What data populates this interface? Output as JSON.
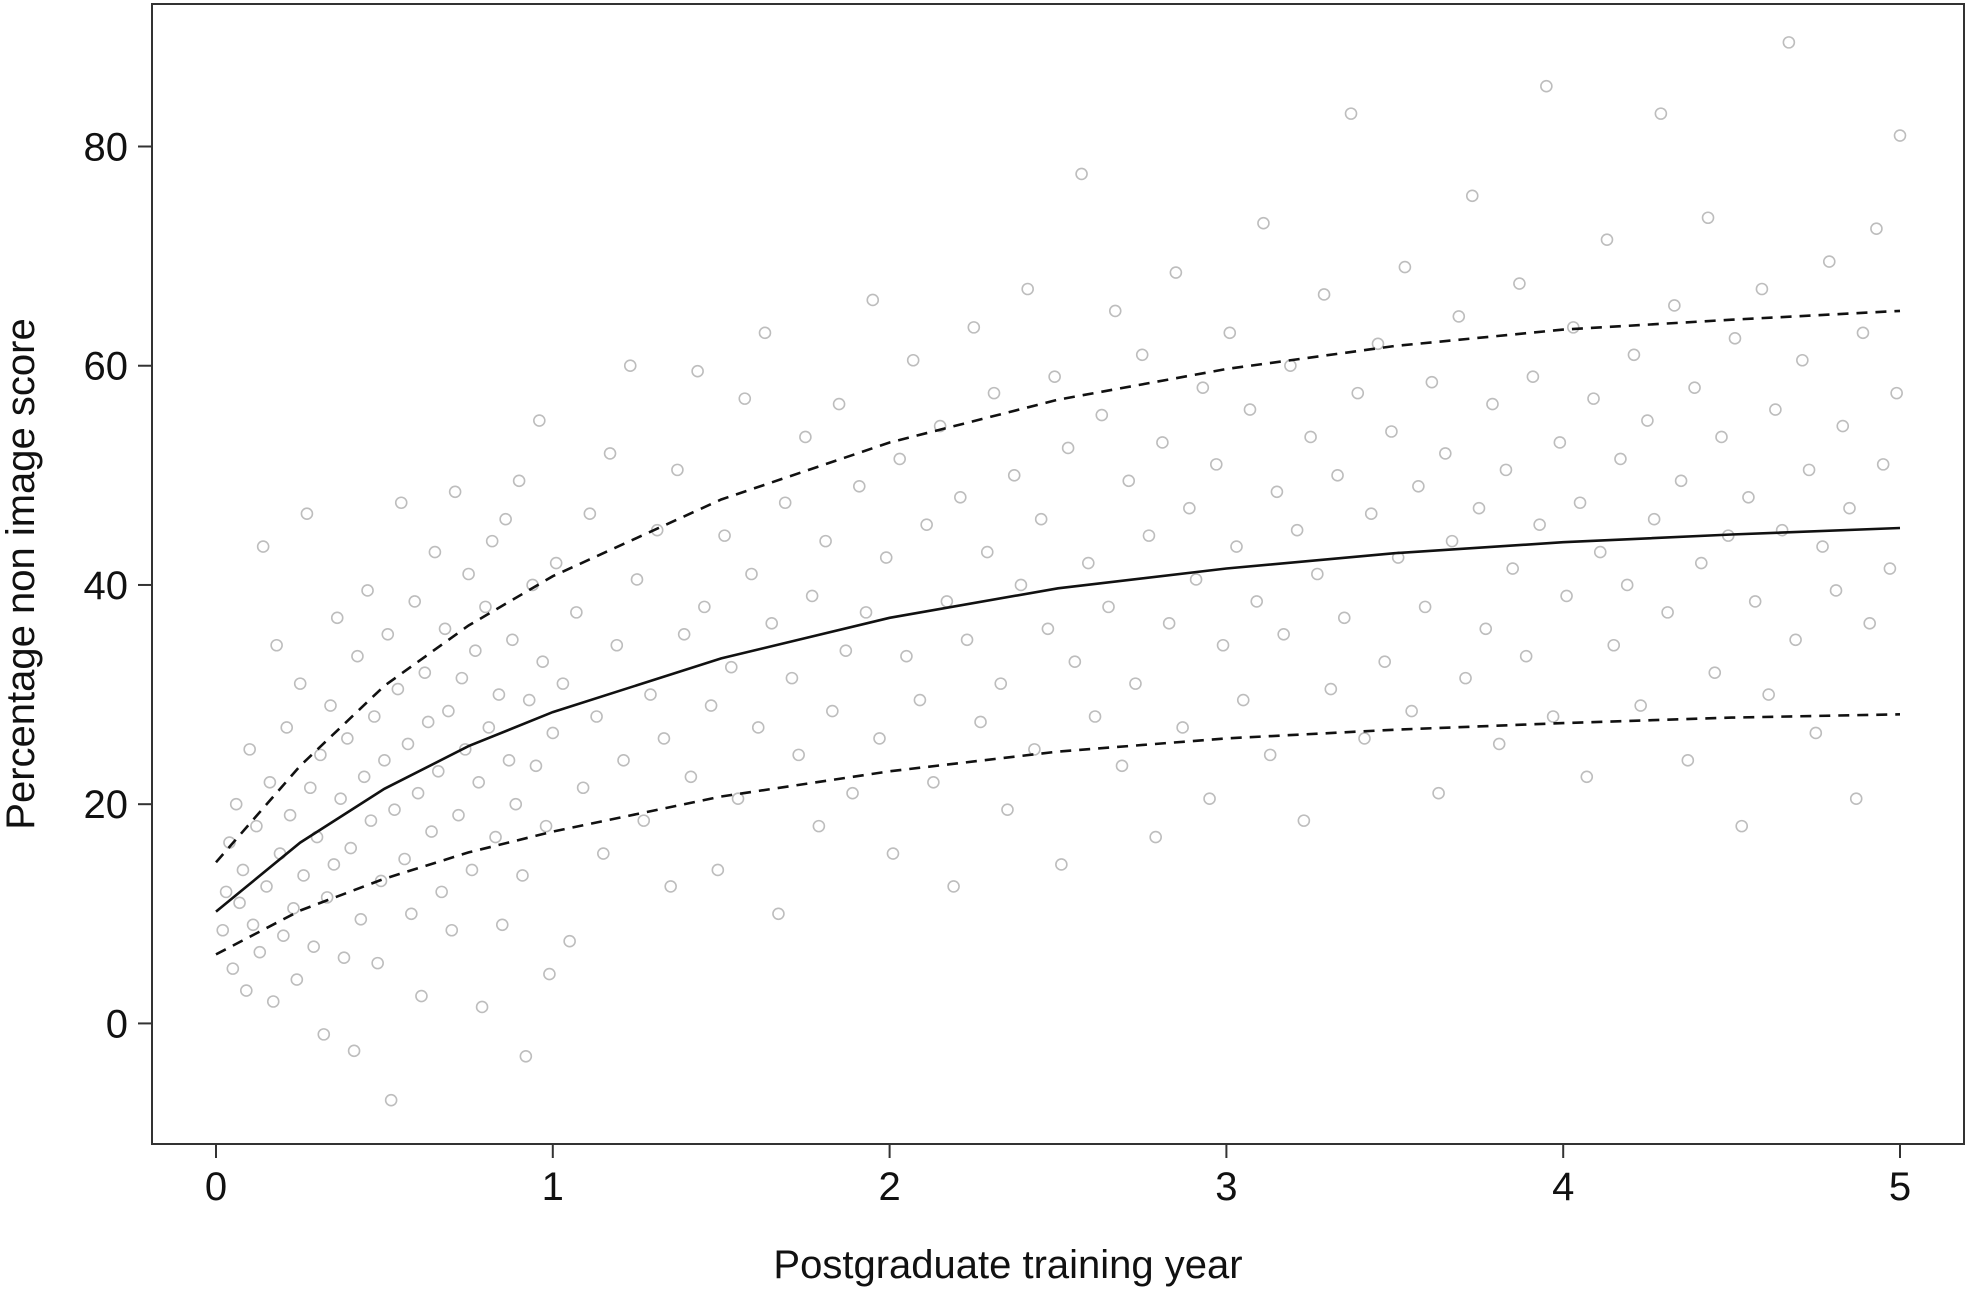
{
  "chart_data": {
    "type": "scatter",
    "title": "",
    "xlabel": "Postgraduate training year",
    "ylabel": "Percentage non image score",
    "xlim": [
      -0.19,
      5.19
    ],
    "ylim": [
      -11,
      93
    ],
    "x_ticks": [
      0,
      1,
      2,
      3,
      4,
      5
    ],
    "y_ticks": [
      0,
      20,
      40,
      60,
      80
    ],
    "grid": false,
    "legend": "none",
    "colors": {
      "points": "#bdbdbd",
      "lines": "#111111",
      "frame": "#333333"
    },
    "fitted_lines": [
      {
        "style": "solid",
        "x": [
          0,
          0.25,
          0.5,
          0.75,
          1,
          1.5,
          2,
          2.5,
          3,
          3.5,
          4,
          4.5,
          5
        ],
        "y": [
          10.2,
          16.5,
          21.4,
          25.3,
          28.4,
          33.3,
          37.0,
          39.7,
          41.5,
          42.9,
          43.9,
          44.6,
          45.2
        ]
      },
      {
        "style": "dashed",
        "x": [
          0,
          0.25,
          0.5,
          0.75,
          1,
          1.5,
          2,
          2.5,
          3,
          3.5,
          4,
          4.5,
          5
        ],
        "y": [
          14.7,
          23.5,
          30.8,
          36.3,
          40.8,
          47.8,
          53.0,
          56.9,
          59.7,
          61.8,
          63.3,
          64.2,
          65.0
        ]
      },
      {
        "style": "dashed",
        "x": [
          0,
          0.25,
          0.5,
          0.75,
          1,
          1.5,
          2,
          2.5,
          3,
          3.5,
          4,
          4.5,
          5
        ],
        "y": [
          6.3,
          10.3,
          13.2,
          15.6,
          17.5,
          20.7,
          23.0,
          24.8,
          26.0,
          26.8,
          27.4,
          27.9,
          28.2
        ]
      }
    ],
    "scatter_points": [
      [
        0.02,
        8.5
      ],
      [
        0.03,
        12.0
      ],
      [
        0.04,
        16.5
      ],
      [
        0.05,
        5.0
      ],
      [
        0.06,
        20.0
      ],
      [
        0.07,
        11.0
      ],
      [
        0.08,
        14.0
      ],
      [
        0.09,
        3.0
      ],
      [
        0.1,
        25.0
      ],
      [
        0.11,
        9.0
      ],
      [
        0.12,
        18.0
      ],
      [
        0.13,
        6.5
      ],
      [
        0.14,
        43.5
      ],
      [
        0.15,
        12.5
      ],
      [
        0.16,
        22.0
      ],
      [
        0.17,
        2.0
      ],
      [
        0.18,
        34.5
      ],
      [
        0.19,
        15.5
      ],
      [
        0.2,
        8.0
      ],
      [
        0.21,
        27.0
      ],
      [
        0.22,
        19.0
      ],
      [
        0.23,
        10.5
      ],
      [
        0.24,
        4.0
      ],
      [
        0.25,
        31.0
      ],
      [
        0.26,
        13.5
      ],
      [
        0.27,
        46.5
      ],
      [
        0.28,
        21.5
      ],
      [
        0.29,
        7.0
      ],
      [
        0.3,
        17.0
      ],
      [
        0.31,
        24.5
      ],
      [
        0.32,
        -1.0
      ],
      [
        0.33,
        11.5
      ],
      [
        0.34,
        29.0
      ],
      [
        0.35,
        14.5
      ],
      [
        0.36,
        37.0
      ],
      [
        0.37,
        20.5
      ],
      [
        0.38,
        6.0
      ],
      [
        0.39,
        26.0
      ],
      [
        0.4,
        16.0
      ],
      [
        0.41,
        -2.5
      ],
      [
        0.42,
        33.5
      ],
      [
        0.43,
        9.5
      ],
      [
        0.44,
        22.5
      ],
      [
        0.45,
        39.5
      ],
      [
        0.46,
        18.5
      ],
      [
        0.47,
        28.0
      ],
      [
        0.48,
        5.5
      ],
      [
        0.49,
        13.0
      ],
      [
        0.5,
        24.0
      ],
      [
        0.51,
        35.5
      ],
      [
        0.52,
        -7.0
      ],
      [
        0.53,
        19.5
      ],
      [
        0.54,
        30.5
      ],
      [
        0.55,
        47.5
      ],
      [
        0.56,
        15.0
      ],
      [
        0.57,
        25.5
      ],
      [
        0.58,
        10.0
      ],
      [
        0.59,
        38.5
      ],
      [
        0.6,
        21.0
      ],
      [
        0.61,
        2.5
      ],
      [
        0.62,
        32.0
      ],
      [
        0.63,
        27.5
      ],
      [
        0.64,
        17.5
      ],
      [
        0.65,
        43.0
      ],
      [
        0.66,
        23.0
      ],
      [
        0.67,
        12.0
      ],
      [
        0.68,
        36.0
      ],
      [
        0.69,
        28.5
      ],
      [
        0.7,
        8.5
      ],
      [
        0.71,
        48.5
      ],
      [
        0.72,
        19.0
      ],
      [
        0.73,
        31.5
      ],
      [
        0.74,
        25.0
      ],
      [
        0.75,
        41.0
      ],
      [
        0.76,
        14.0
      ],
      [
        0.77,
        34.0
      ],
      [
        0.78,
        22.0
      ],
      [
        0.79,
        1.5
      ],
      [
        0.8,
        38.0
      ],
      [
        0.81,
        27.0
      ],
      [
        0.82,
        44.0
      ],
      [
        0.83,
        17.0
      ],
      [
        0.84,
        30.0
      ],
      [
        0.85,
        9.0
      ],
      [
        0.86,
        46.0
      ],
      [
        0.87,
        24.0
      ],
      [
        0.88,
        35.0
      ],
      [
        0.89,
        20.0
      ],
      [
        0.9,
        49.5
      ],
      [
        0.91,
        13.5
      ],
      [
        0.92,
        -3.0
      ],
      [
        0.93,
        29.5
      ],
      [
        0.94,
        40.0
      ],
      [
        0.95,
        23.5
      ],
      [
        0.96,
        55.0
      ],
      [
        0.97,
        33.0
      ],
      [
        0.98,
        18.0
      ],
      [
        0.99,
        4.5
      ],
      [
        1.0,
        26.5
      ],
      [
        1.01,
        42.0
      ],
      [
        1.03,
        31.0
      ],
      [
        1.05,
        7.5
      ],
      [
        1.07,
        37.5
      ],
      [
        1.09,
        21.5
      ],
      [
        1.11,
        46.5
      ],
      [
        1.13,
        28.0
      ],
      [
        1.15,
        15.5
      ],
      [
        1.17,
        52.0
      ],
      [
        1.19,
        34.5
      ],
      [
        1.21,
        24.0
      ],
      [
        1.23,
        60.0
      ],
      [
        1.25,
        40.5
      ],
      [
        1.27,
        18.5
      ],
      [
        1.29,
        30.0
      ],
      [
        1.31,
        45.0
      ],
      [
        1.33,
        26.0
      ],
      [
        1.35,
        12.5
      ],
      [
        1.37,
        50.5
      ],
      [
        1.39,
        35.5
      ],
      [
        1.41,
        22.5
      ],
      [
        1.43,
        59.5
      ],
      [
        1.45,
        38.0
      ],
      [
        1.47,
        29.0
      ],
      [
        1.49,
        14.0
      ],
      [
        1.51,
        44.5
      ],
      [
        1.53,
        32.5
      ],
      [
        1.55,
        20.5
      ],
      [
        1.57,
        57.0
      ],
      [
        1.59,
        41.0
      ],
      [
        1.61,
        27.0
      ],
      [
        1.63,
        63.0
      ],
      [
        1.65,
        36.5
      ],
      [
        1.67,
        10.0
      ],
      [
        1.69,
        47.5
      ],
      [
        1.71,
        31.5
      ],
      [
        1.73,
        24.5
      ],
      [
        1.75,
        53.5
      ],
      [
        1.77,
        39.0
      ],
      [
        1.79,
        18.0
      ],
      [
        1.81,
        44.0
      ],
      [
        1.83,
        28.5
      ],
      [
        1.85,
        56.5
      ],
      [
        1.87,
        34.0
      ],
      [
        1.89,
        21.0
      ],
      [
        1.91,
        49.0
      ],
      [
        1.93,
        37.5
      ],
      [
        1.95,
        66.0
      ],
      [
        1.97,
        26.0
      ],
      [
        1.99,
        42.5
      ],
      [
        2.01,
        15.5
      ],
      [
        2.03,
        51.5
      ],
      [
        2.05,
        33.5
      ],
      [
        2.07,
        60.5
      ],
      [
        2.09,
        29.5
      ],
      [
        2.11,
        45.5
      ],
      [
        2.13,
        22.0
      ],
      [
        2.15,
        54.5
      ],
      [
        2.17,
        38.5
      ],
      [
        2.19,
        12.5
      ],
      [
        2.21,
        48.0
      ],
      [
        2.23,
        35.0
      ],
      [
        2.25,
        63.5
      ],
      [
        2.27,
        27.5
      ],
      [
        2.29,
        43.0
      ],
      [
        2.31,
        57.5
      ],
      [
        2.33,
        31.0
      ],
      [
        2.35,
        19.5
      ],
      [
        2.37,
        50.0
      ],
      [
        2.39,
        40.0
      ],
      [
        2.41,
        67.0
      ],
      [
        2.43,
        25.0
      ],
      [
        2.45,
        46.0
      ],
      [
        2.47,
        36.0
      ],
      [
        2.49,
        59.0
      ],
      [
        2.51,
        14.5
      ],
      [
        2.53,
        52.5
      ],
      [
        2.55,
        33.0
      ],
      [
        2.57,
        77.5
      ],
      [
        2.59,
        42.0
      ],
      [
        2.61,
        28.0
      ],
      [
        2.63,
        55.5
      ],
      [
        2.65,
        38.0
      ],
      [
        2.67,
        65.0
      ],
      [
        2.69,
        23.5
      ],
      [
        2.71,
        49.5
      ],
      [
        2.73,
        31.0
      ],
      [
        2.75,
        61.0
      ],
      [
        2.77,
        44.5
      ],
      [
        2.79,
        17.0
      ],
      [
        2.81,
        53.0
      ],
      [
        2.83,
        36.5
      ],
      [
        2.85,
        68.5
      ],
      [
        2.87,
        27.0
      ],
      [
        2.89,
        47.0
      ],
      [
        2.91,
        40.5
      ],
      [
        2.93,
        58.0
      ],
      [
        2.95,
        20.5
      ],
      [
        2.97,
        51.0
      ],
      [
        2.99,
        34.5
      ],
      [
        3.01,
        63.0
      ],
      [
        3.03,
        43.5
      ],
      [
        3.05,
        29.5
      ],
      [
        3.07,
        56.0
      ],
      [
        3.09,
        38.5
      ],
      [
        3.11,
        73.0
      ],
      [
        3.13,
        24.5
      ],
      [
        3.15,
        48.5
      ],
      [
        3.17,
        35.5
      ],
      [
        3.19,
        60.0
      ],
      [
        3.21,
        45.0
      ],
      [
        3.23,
        18.5
      ],
      [
        3.25,
        53.5
      ],
      [
        3.27,
        41.0
      ],
      [
        3.29,
        66.5
      ],
      [
        3.31,
        30.5
      ],
      [
        3.33,
        50.0
      ],
      [
        3.35,
        37.0
      ],
      [
        3.37,
        83.0
      ],
      [
        3.39,
        57.5
      ],
      [
        3.41,
        26.0
      ],
      [
        3.43,
        46.5
      ],
      [
        3.45,
        62.0
      ],
      [
        3.47,
        33.0
      ],
      [
        3.49,
        54.0
      ],
      [
        3.51,
        42.5
      ],
      [
        3.53,
        69.0
      ],
      [
        3.55,
        28.5
      ],
      [
        3.57,
        49.0
      ],
      [
        3.59,
        38.0
      ],
      [
        3.61,
        58.5
      ],
      [
        3.63,
        21.0
      ],
      [
        3.65,
        52.0
      ],
      [
        3.67,
        44.0
      ],
      [
        3.69,
        64.5
      ],
      [
        3.71,
        31.5
      ],
      [
        3.73,
        75.5
      ],
      [
        3.75,
        47.0
      ],
      [
        3.77,
        36.0
      ],
      [
        3.79,
        56.5
      ],
      [
        3.81,
        25.5
      ],
      [
        3.83,
        50.5
      ],
      [
        3.85,
        41.5
      ],
      [
        3.87,
        67.5
      ],
      [
        3.89,
        33.5
      ],
      [
        3.91,
        59.0
      ],
      [
        3.93,
        45.5
      ],
      [
        3.95,
        85.5
      ],
      [
        3.97,
        28.0
      ],
      [
        3.99,
        53.0
      ],
      [
        4.01,
        39.0
      ],
      [
        4.03,
        63.5
      ],
      [
        4.05,
        47.5
      ],
      [
        4.07,
        22.5
      ],
      [
        4.09,
        57.0
      ],
      [
        4.11,
        43.0
      ],
      [
        4.13,
        71.5
      ],
      [
        4.15,
        34.5
      ],
      [
        4.17,
        51.5
      ],
      [
        4.19,
        40.0
      ],
      [
        4.21,
        61.0
      ],
      [
        4.23,
        29.0
      ],
      [
        4.25,
        55.0
      ],
      [
        4.27,
        46.0
      ],
      [
        4.29,
        83.0
      ],
      [
        4.31,
        37.5
      ],
      [
        4.33,
        65.5
      ],
      [
        4.35,
        49.5
      ],
      [
        4.37,
        24.0
      ],
      [
        4.39,
        58.0
      ],
      [
        4.41,
        42.0
      ],
      [
        4.43,
        73.5
      ],
      [
        4.45,
        32.0
      ],
      [
        4.47,
        53.5
      ],
      [
        4.49,
        44.5
      ],
      [
        4.51,
        62.5
      ],
      [
        4.53,
        18.0
      ],
      [
        4.55,
        48.0
      ],
      [
        4.57,
        38.5
      ],
      [
        4.59,
        67.0
      ],
      [
        4.61,
        30.0
      ],
      [
        4.63,
        56.0
      ],
      [
        4.65,
        45.0
      ],
      [
        4.67,
        89.5
      ],
      [
        4.69,
        35.0
      ],
      [
        4.71,
        60.5
      ],
      [
        4.73,
        50.5
      ],
      [
        4.75,
        26.5
      ],
      [
        4.77,
        43.5
      ],
      [
        4.79,
        69.5
      ],
      [
        4.81,
        39.5
      ],
      [
        4.83,
        54.5
      ],
      [
        4.85,
        47.0
      ],
      [
        4.87,
        20.5
      ],
      [
        4.89,
        63.0
      ],
      [
        4.91,
        36.5
      ],
      [
        4.93,
        72.5
      ],
      [
        4.95,
        51.0
      ],
      [
        4.97,
        41.5
      ],
      [
        4.99,
        57.5
      ],
      [
        5.0,
        81.0
      ]
    ]
  }
}
